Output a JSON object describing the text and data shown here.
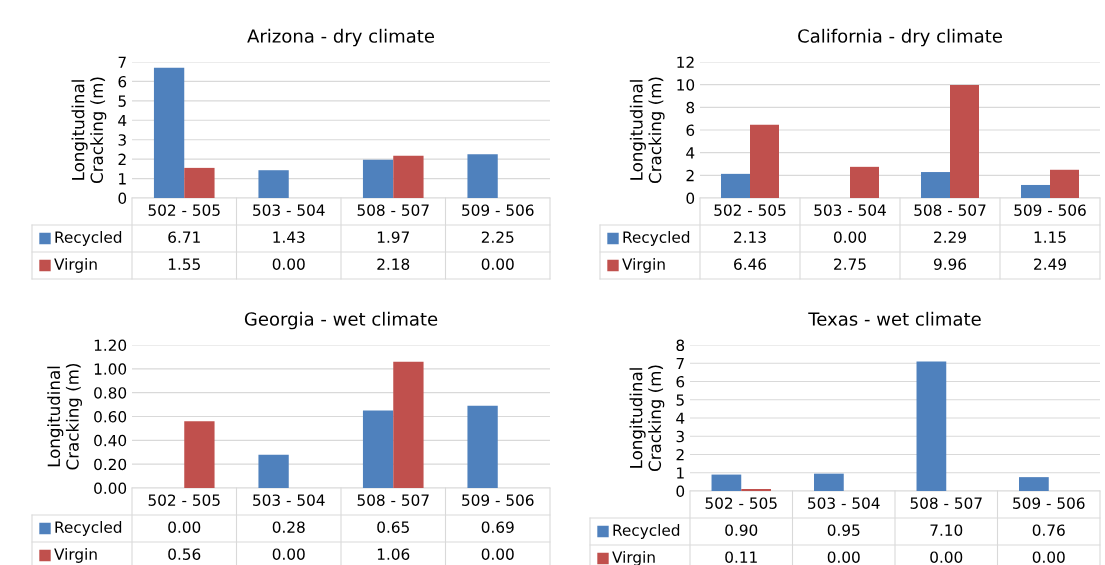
{
  "chart_data": [
    {
      "type": "bar",
      "title": "Arizona - dry climate",
      "ylabel": "Longitudinal\nCracking (m)",
      "categories": [
        "502 - 505",
        "503 - 504",
        "508 - 507",
        "509 - 506"
      ],
      "ylim": [
        0,
        7
      ],
      "yticks": [
        0,
        1,
        2,
        3,
        4,
        5,
        6,
        7
      ],
      "grid": "y",
      "legend": "bottom",
      "series": [
        {
          "name": "Recycled",
          "color": "#4f81bd",
          "values": [
            6.71,
            1.43,
            1.97,
            2.25
          ],
          "value_labels": [
            "6.71",
            "1.43",
            "1.97",
            "2.25"
          ]
        },
        {
          "name": "Virgin",
          "color": "#c0504d",
          "values": [
            1.55,
            0.0,
            2.18,
            0.0
          ],
          "value_labels": [
            "1.55",
            "0.00",
            "2.18",
            "0.00"
          ]
        }
      ]
    },
    {
      "type": "bar",
      "title": "California - dry climate",
      "ylabel": "Longitudinal\nCracking (m)",
      "categories": [
        "502 - 505",
        "503 - 504",
        "508 - 507",
        "509 - 506"
      ],
      "ylim": [
        0,
        12
      ],
      "yticks": [
        0,
        2,
        4,
        6,
        8,
        10,
        12
      ],
      "grid": "y",
      "legend": "bottom",
      "series": [
        {
          "name": "Recycled",
          "color": "#4f81bd",
          "values": [
            2.13,
            0.0,
            2.29,
            1.15
          ],
          "value_labels": [
            "2.13",
            "0.00",
            "2.29",
            "1.15"
          ]
        },
        {
          "name": "Virgin",
          "color": "#c0504d",
          "values": [
            6.46,
            2.75,
            9.96,
            2.49
          ],
          "value_labels": [
            "6.46",
            "2.75",
            "9.96",
            "2.49"
          ]
        }
      ]
    },
    {
      "type": "bar",
      "title": "Georgia - wet climate",
      "ylabel": "Longitudinal\nCracking (m)",
      "categories": [
        "502 - 505",
        "503 - 504",
        "508 - 507",
        "509 - 506"
      ],
      "ylim": [
        0,
        1.2
      ],
      "yticks": [
        {
          "value": 0,
          "label": "0.00"
        },
        {
          "value": 0.2,
          "label": "0.20"
        },
        {
          "value": 0.4,
          "label": "0.40"
        },
        {
          "value": 0.6,
          "label": "0.60"
        },
        {
          "value": 0.8,
          "label": "0.80"
        },
        {
          "value": 1.0,
          "label": "1.00"
        },
        {
          "value": 1.2,
          "label": "1.20"
        }
      ],
      "grid": "y",
      "legend": "bottom",
      "series": [
        {
          "name": "Recycled",
          "color": "#4f81bd",
          "values": [
            0.0,
            0.28,
            0.65,
            0.69
          ],
          "value_labels": [
            "0.00",
            "0.28",
            "0.65",
            "0.69"
          ]
        },
        {
          "name": "Virgin",
          "color": "#c0504d",
          "values": [
            0.56,
            0.0,
            1.06,
            0.0
          ],
          "value_labels": [
            "0.56",
            "0.00",
            "1.06",
            "0.00"
          ]
        }
      ]
    },
    {
      "type": "bar",
      "title": "Texas - wet climate",
      "ylabel": "Longitudinal\nCracking (m)",
      "categories": [
        "502 - 505",
        "503 - 504",
        "508 - 507",
        "509 - 506"
      ],
      "ylim": [
        0,
        8
      ],
      "yticks": [
        0,
        1,
        2,
        3,
        4,
        5,
        6,
        7,
        8
      ],
      "grid": "y",
      "legend": "bottom",
      "series": [
        {
          "name": "Recycled",
          "color": "#4f81bd",
          "values": [
            0.9,
            0.95,
            7.1,
            0.76
          ],
          "value_labels": [
            "0.90",
            "0.95",
            "7.10",
            "0.76"
          ]
        },
        {
          "name": "Virgin",
          "color": "#c0504d",
          "values": [
            0.11,
            0.0,
            0.0,
            0.0
          ],
          "value_labels": [
            "0.11",
            "0.00",
            "0.00",
            "0.00"
          ]
        }
      ]
    }
  ]
}
